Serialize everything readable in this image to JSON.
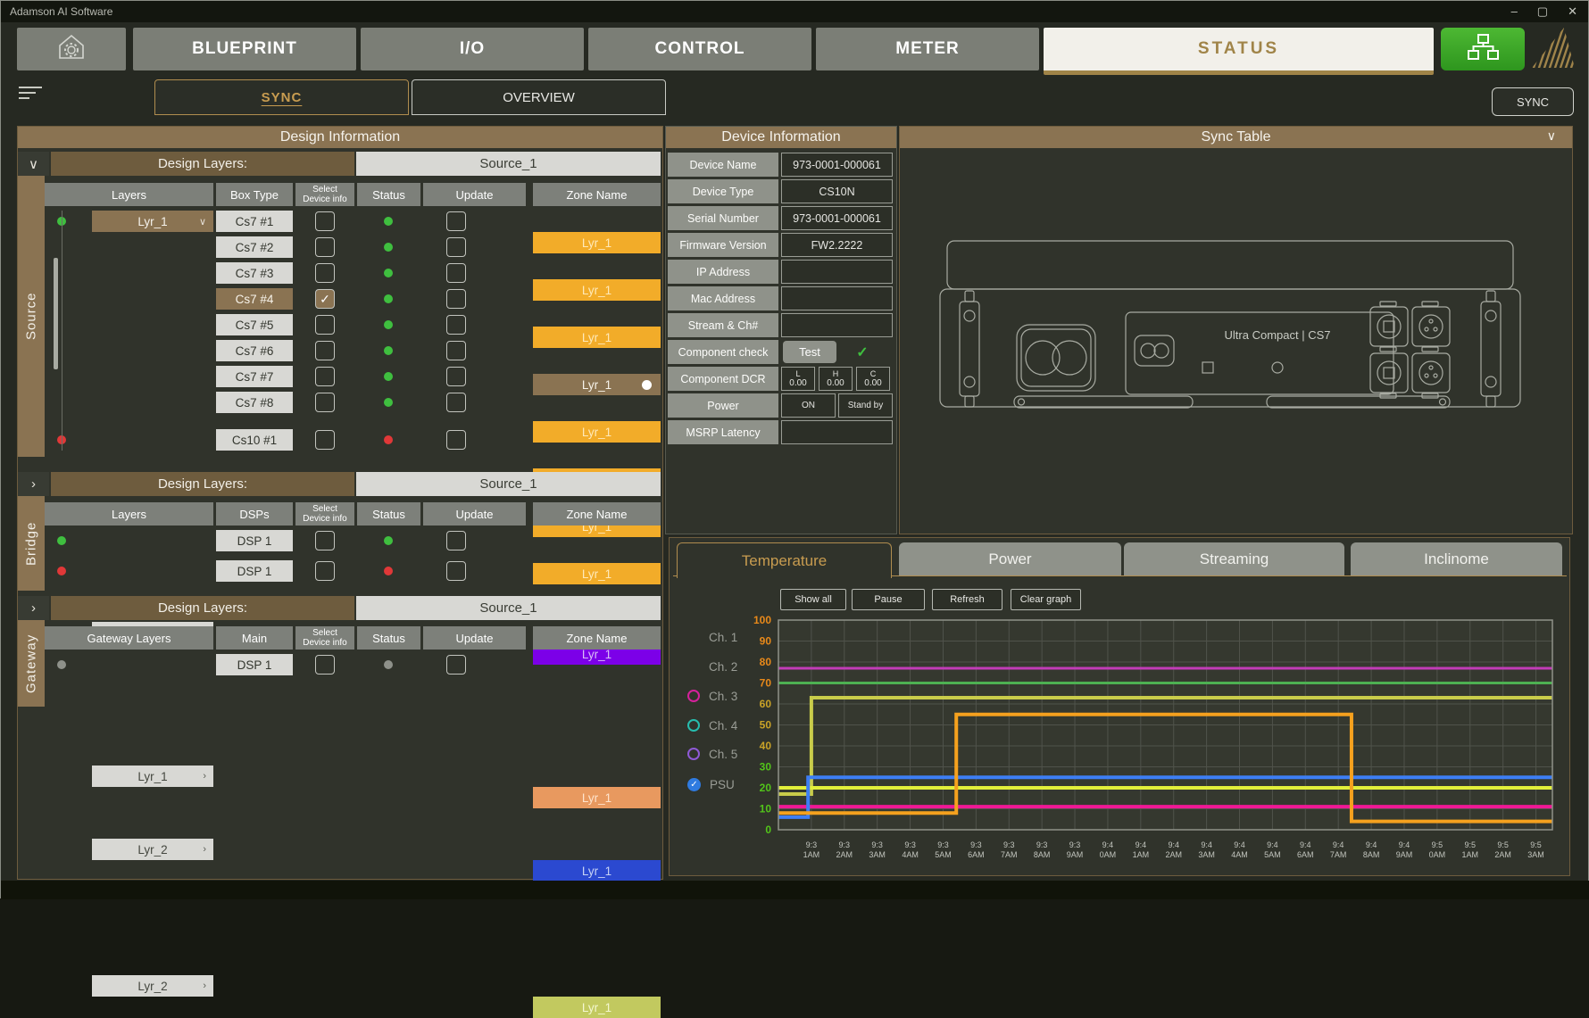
{
  "window": {
    "title": "Adamson AI Software",
    "controls": {
      "minimize": "–",
      "maximize": "▢",
      "close": "✕"
    }
  },
  "nav": {
    "tabs": [
      {
        "label": "BLUEPRINT",
        "active": false
      },
      {
        "label": "I/O",
        "active": false
      },
      {
        "label": "CONTROL",
        "active": false
      },
      {
        "label": "METER",
        "active": false
      },
      {
        "label": "STATUS",
        "active": true
      }
    ]
  },
  "subnav": {
    "tabs": [
      {
        "label": "SYNC",
        "active": true
      },
      {
        "label": "OVERVIEW",
        "active": false
      }
    ],
    "sync_button": "SYNC"
  },
  "design": {
    "title": "Design Information",
    "sections": [
      {
        "id": "source",
        "side_label": "Source",
        "chevron": "∨",
        "layers_label": "Design Layers:",
        "layers_value": "Source_1",
        "columns": [
          "Layers",
          "Box Type",
          "Select\nDevice info",
          "Status",
          "Update",
          "Zone Name"
        ],
        "rows": [
          {
            "dot": "#3FBF3F",
            "layer": "Lyr_1",
            "layer_kind": "dropdown",
            "box": "Cs7 #1",
            "checked": false,
            "status": "#3FBF3F",
            "zone": "Lyr_1",
            "zone_bg": "#F2AC29",
            "zone_fg": "#FFE9B8"
          },
          {
            "box": "Cs7 #2",
            "checked": false,
            "status": "#3FBF3F",
            "zone": "Lyr_1",
            "zone_bg": "#F2AC29",
            "zone_fg": "#FFE9B8"
          },
          {
            "box": "Cs7 #3",
            "checked": false,
            "status": "#3FBF3F",
            "zone": "Lyr_1",
            "zone_bg": "#F2AC29",
            "zone_fg": "#FFE9B8"
          },
          {
            "box": "Cs7 #4",
            "selected": true,
            "checked": true,
            "status": "#3FBF3F",
            "zone": "Lyr_1",
            "zone_bg": "#8A7352",
            "zone_fg": "#F7F3EA",
            "zone_dot": true
          },
          {
            "box": "Cs7 #5",
            "checked": false,
            "status": "#3FBF3F",
            "zone": "Lyr_1",
            "zone_bg": "#F2AC29",
            "zone_fg": "#FFE9B8"
          },
          {
            "box": "Cs7 #6",
            "checked": false,
            "status": "#3FBF3F",
            "zone": "Lyr_1",
            "zone_bg": "#F2AC29",
            "zone_fg": "#FFE9B8"
          },
          {
            "box": "Cs7 #7",
            "checked": false,
            "status": "#3FBF3F",
            "zone": "Lyr_1",
            "zone_bg": "#F2AC29",
            "zone_fg": "#FFE9B8"
          },
          {
            "box": "Cs7 #8",
            "checked": false,
            "status": "#3FBF3F",
            "zone": "Lyr_1",
            "zone_bg": "#F2AC29",
            "zone_fg": "#FFE9B8"
          },
          {
            "dot": "#E03838",
            "layer": "Lyr_2",
            "layer_kind": "link",
            "box": "Cs10 #1",
            "checked": false,
            "status": "#E03838",
            "zone": "Lyr_1",
            "zone_bg": "#7C00E8",
            "zone_fg": "#D9BCF7"
          }
        ]
      },
      {
        "id": "bridge",
        "side_label": "Bridge",
        "chevron": "›",
        "layers_label": "Design Layers:",
        "layers_value": "Source_1",
        "columns": [
          "Layers",
          "DSPs",
          "Select\nDevice info",
          "Status",
          "Update",
          "Zone Name"
        ],
        "rows": [
          {
            "dot": "#3FBF3F",
            "layer": "Lyr_1",
            "layer_kind": "link",
            "box": "DSP 1",
            "checked": false,
            "status": "#3FBF3F",
            "zone": "Lyr_1",
            "zone_bg": "#E8995F",
            "zone_fg": "#FFE4CC"
          },
          {
            "dot": "#E03838",
            "layer": "Lyr_2",
            "layer_kind": "link",
            "box": "DSP 1",
            "checked": false,
            "status": "#E03838",
            "zone": "Lyr_1",
            "zone_bg": "#2B49D0",
            "zone_fg": "#C6D2F5"
          }
        ]
      },
      {
        "id": "gateway",
        "side_label": "Gateway",
        "chevron": "›",
        "layers_label": "Design Layers:",
        "layers_value": "Source_1",
        "columns": [
          "Gateway Layers",
          "Main",
          "Select\nDevice info",
          "Status",
          "Update",
          "Zone Name"
        ],
        "rows": [
          {
            "dot": "#8E918A",
            "layer": "Lyr_2",
            "layer_kind": "link",
            "box": "DSP 1",
            "checked": false,
            "status": "#8E918A",
            "zone": "Lyr_1",
            "zone_bg": "#C2C95F",
            "zone_fg": "#F4F7D0"
          }
        ]
      }
    ]
  },
  "device": {
    "title": "Device Information",
    "rows": [
      {
        "label": "Device Name",
        "value": "973-0001-000061"
      },
      {
        "label": "Device Type",
        "value": "CS10N"
      },
      {
        "label": "Serial Number",
        "value": "973-0001-000061"
      },
      {
        "label": "Firmware Version",
        "value": "FW2.2222"
      },
      {
        "label": "IP Address",
        "value": ""
      },
      {
        "label": "Mac Address",
        "value": ""
      },
      {
        "label": "Stream & Ch#",
        "value": ""
      }
    ],
    "component_check": {
      "label": "Component check",
      "button": "Test",
      "check": "✓"
    },
    "component_dcr": {
      "label": "Component DCR",
      "cells": [
        {
          "k": "L",
          "v": "0.00"
        },
        {
          "k": "H",
          "v": "0.00"
        },
        {
          "k": "C",
          "v": "0.00"
        }
      ]
    },
    "power": {
      "label": "Power",
      "on": "ON",
      "standby": "Stand by"
    },
    "msrp": {
      "label": "MSRP Latency",
      "value": ""
    }
  },
  "sync_table": {
    "title": "Sync Table",
    "chevron": "∨",
    "device_label": "Ultra Compact  |  CS7"
  },
  "monitor": {
    "tabs": [
      {
        "label": "Temperature",
        "active": true
      },
      {
        "label": "Power",
        "active": false
      },
      {
        "label": "Streaming",
        "active": false
      },
      {
        "label": "Inclinome",
        "active": false
      }
    ],
    "buttons": [
      "Show all",
      "Pause",
      "Refresh",
      "Clear graph"
    ],
    "legend": [
      {
        "label": "Ch. 1",
        "color": null,
        "checked": false
      },
      {
        "label": "Ch. 2",
        "color": null,
        "checked": false
      },
      {
        "label": "Ch. 3",
        "color": "#D6219C",
        "checked": false
      },
      {
        "label": "Ch. 4",
        "color": "#27BDAE",
        "checked": false
      },
      {
        "label": "Ch. 5",
        "color": "#8F5AD6",
        "checked": false
      },
      {
        "label": "PSU",
        "color": "#2F7BE0",
        "checked": true
      }
    ]
  },
  "chart_data": {
    "type": "line",
    "title": "Temperature",
    "xlabel": "",
    "ylabel": "",
    "legend_position": "left",
    "grid": true,
    "ylim": [
      0,
      100
    ],
    "ytick_step": 10,
    "ytick_colors": {
      "high": "#E8891A",
      "mid": "#C9A227",
      "low": "#52C41A"
    },
    "x_domain": [
      0,
      23.5
    ],
    "x_labels": [
      "9:31AM",
      "9:32AM",
      "9:33AM",
      "9:34AM",
      "9:35AM",
      "9:36AM",
      "9:37AM",
      "9:38AM",
      "9:39AM",
      "9:40AM",
      "9:41AM",
      "9:42AM",
      "9:43AM",
      "9:44AM",
      "9:45AM",
      "9:46AM",
      "9:47AM",
      "9:48AM",
      "9:49AM",
      "9:50AM",
      "9:51AM",
      "9:52AM",
      "9:53AM"
    ],
    "series": [
      {
        "name": "channel-magenta",
        "color": "#C23CB8",
        "width": 3,
        "points": [
          [
            0,
            77
          ],
          [
            23.5,
            77
          ]
        ]
      },
      {
        "name": "channel-green",
        "color": "#4DB052",
        "width": 3,
        "points": [
          [
            0,
            70
          ],
          [
            23.5,
            70
          ]
        ]
      },
      {
        "name": "channel-olive",
        "color": "#C9CC4A",
        "width": 4,
        "points": [
          [
            0,
            17
          ],
          [
            1,
            17
          ],
          [
            1,
            63
          ],
          [
            23.5,
            63
          ]
        ]
      },
      {
        "name": "channel-yellow",
        "color": "#E2EF3A",
        "width": 4,
        "points": [
          [
            0,
            20
          ],
          [
            23.5,
            20
          ]
        ]
      },
      {
        "name": "channel-pink",
        "color": "#F01896",
        "width": 4,
        "points": [
          [
            0,
            11
          ],
          [
            23.5,
            11
          ]
        ]
      },
      {
        "name": "channel-blue",
        "color": "#3D7EF5",
        "width": 4,
        "points": [
          [
            0,
            6
          ],
          [
            0.9,
            6
          ],
          [
            0.9,
            25
          ],
          [
            23.5,
            25
          ]
        ]
      },
      {
        "name": "psu-orange",
        "color": "#F5A11E",
        "width": 4,
        "points": [
          [
            0,
            8
          ],
          [
            5.4,
            8
          ],
          [
            5.4,
            55
          ],
          [
            17.4,
            55
          ],
          [
            17.4,
            4
          ],
          [
            23.5,
            4
          ]
        ]
      }
    ]
  }
}
